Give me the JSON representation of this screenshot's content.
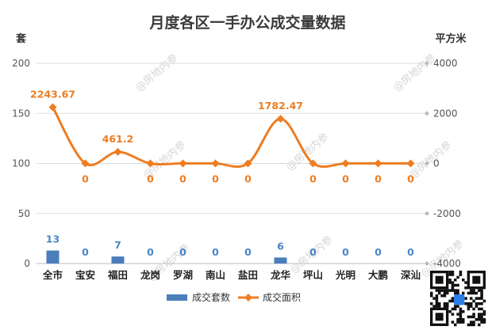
{
  "chart_data": {
    "type": "bar",
    "title": "月度各区一手办公成交量数据",
    "left_unit": "套",
    "right_unit": "平方米",
    "categories": [
      "全市",
      "宝安",
      "福田",
      "龙岗",
      "罗湖",
      "南山",
      "盐田",
      "龙华",
      "坪山",
      "光明",
      "大鹏",
      "深汕"
    ],
    "y_left": {
      "min": 0,
      "max": 200,
      "ticks": [
        0,
        50,
        100,
        150,
        200
      ]
    },
    "y_right": {
      "min": -4000,
      "max": 4000,
      "ticks": [
        -4000,
        -2000,
        0,
        2000,
        4000
      ]
    },
    "series": [
      {
        "name": "成交套数",
        "type": "bar",
        "axis": "left",
        "color": "#4a7ebb",
        "values": [
          13,
          0,
          7,
          0,
          0,
          0,
          0,
          6,
          0,
          0,
          0,
          0
        ],
        "labels": [
          "13",
          "0",
          "7",
          "0",
          "0",
          "0",
          "0",
          "6",
          "0",
          "0",
          "0",
          "0"
        ]
      },
      {
        "name": "成交面积",
        "type": "line",
        "axis": "right",
        "color": "#ee7d22",
        "values": [
          2243.67,
          0,
          461.2,
          0,
          0,
          0,
          0,
          1782.47,
          0,
          0,
          0,
          0
        ],
        "labels": [
          "2243.67",
          "0",
          "461.2",
          "0",
          "0",
          "0",
          "0",
          "1782.47",
          "0",
          "0",
          "0",
          "0"
        ]
      }
    ],
    "grid": true,
    "legend": "bottom-center"
  },
  "watermark": "@房地内参"
}
